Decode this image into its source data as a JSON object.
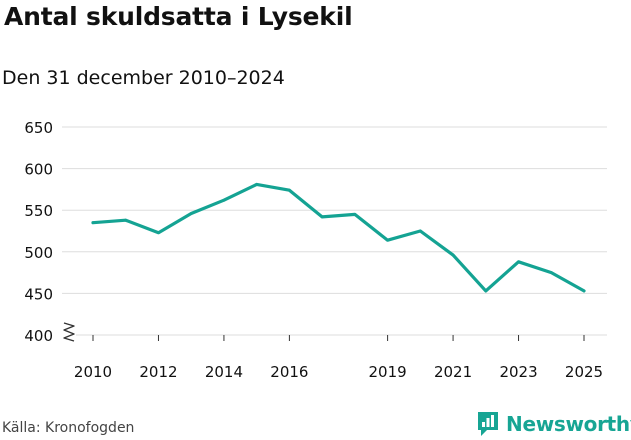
{
  "title": "Antal skuldsatta i Lysekil",
  "subtitle": "Den 31 december 2010–2024",
  "source": "Källa: Kronofogden",
  "brand": {
    "name": "Newsworthy",
    "color": "#17a594",
    "icon": "newsworthy-logo-icon"
  },
  "colors": {
    "line": "#14a393",
    "grid": "#dddddd",
    "text": "#111111"
  },
  "chart_data": {
    "type": "line",
    "x_ticks": [
      2010,
      2012,
      2014,
      2016,
      2019,
      2021,
      2023,
      2025
    ],
    "y_ticks": [
      400,
      450,
      500,
      550,
      600,
      650
    ],
    "ylim": [
      400,
      650
    ],
    "xlim": [
      2010,
      2025
    ],
    "grid": "horizontal",
    "axis_break": true,
    "series": [
      {
        "x": [
          2010,
          2011,
          2012,
          2013,
          2014,
          2015,
          2016,
          2017,
          2018,
          2019,
          2020,
          2021,
          2022,
          2023,
          2024,
          2025
        ],
        "values": [
          535,
          538,
          523,
          546,
          562,
          581,
          574,
          542,
          545,
          514,
          525,
          496,
          453,
          488,
          475,
          453
        ]
      }
    ]
  }
}
